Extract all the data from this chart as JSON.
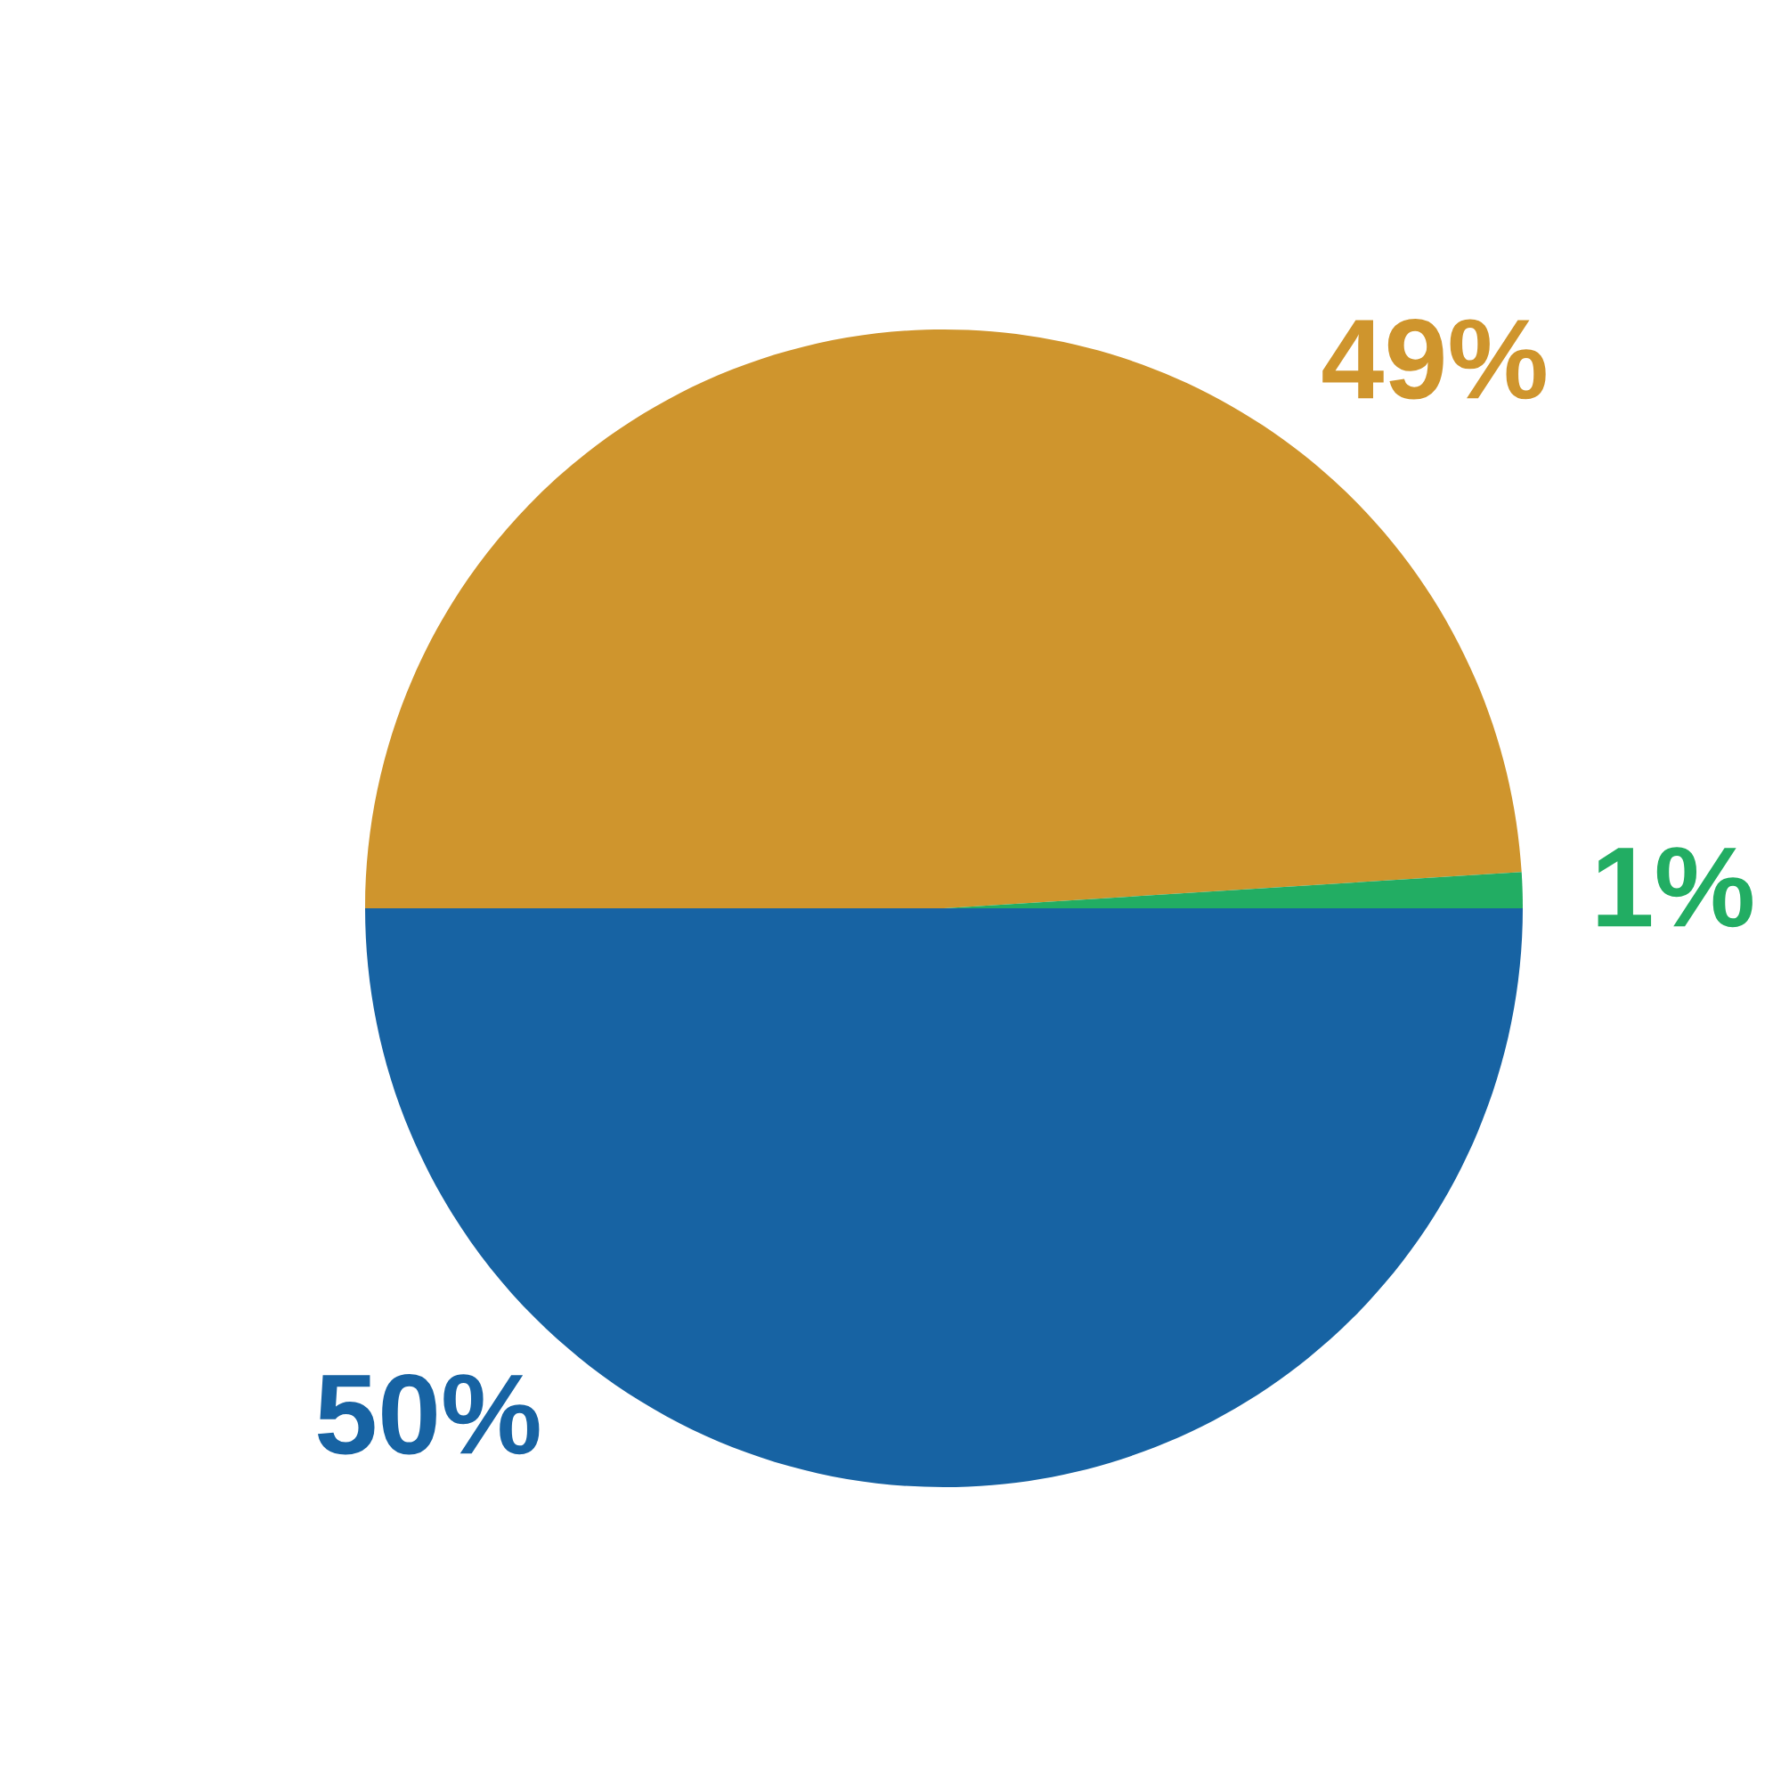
{
  "chart_data": {
    "type": "pie",
    "categories": [
      null,
      null,
      null
    ],
    "values": [
      49,
      1,
      50
    ],
    "colors": [
      "#cf952d",
      "#22ad63",
      "#1763a3"
    ],
    "value_labels": [
      "49%",
      "1%",
      "50%"
    ]
  }
}
